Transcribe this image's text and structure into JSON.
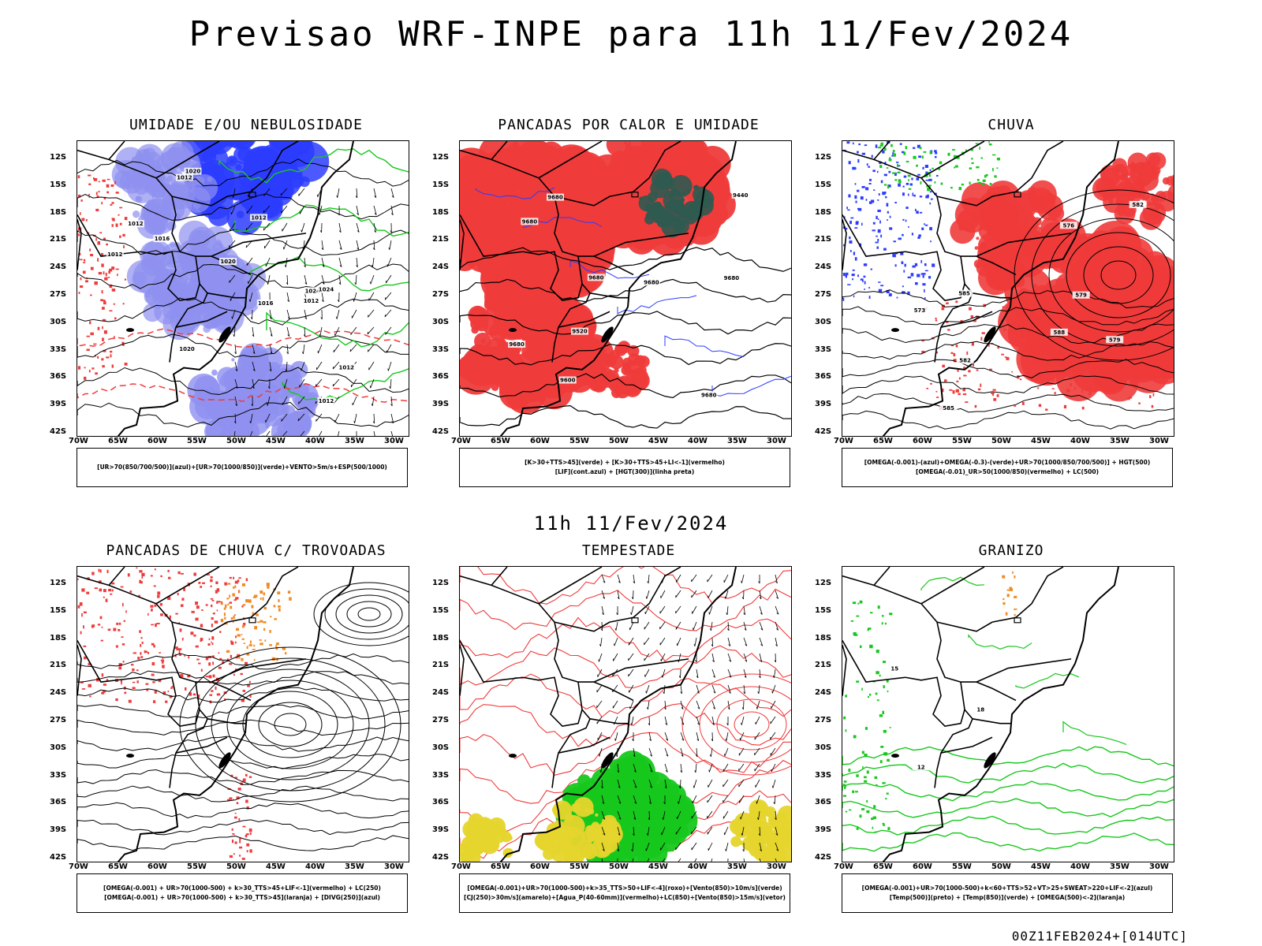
{
  "title": "Previsao WRF-INPE  para 11h 11/Fev/2024",
  "middle_title": "11h 11/Fev/2024",
  "footer": "00Z11FEB2024+[014UTC]",
  "lat_labels": [
    "12S",
    "15S",
    "18S",
    "21S",
    "24S",
    "27S",
    "30S",
    "33S",
    "36S",
    "39S",
    "42S"
  ],
  "lon_labels": [
    "70W",
    "65W",
    "60W",
    "55W",
    "50W",
    "45W",
    "40W",
    "35W",
    "30W"
  ],
  "colors": {
    "blue": "#2b3cff",
    "light_blue": "#8f90f0",
    "green": "#17c81c",
    "red": "#ef3b3b",
    "dark_teal": "#2f5a50",
    "orange": "#f08a24",
    "yellow": "#e5d52c"
  },
  "panels": [
    {
      "title": "UMIDADE E/OU NEBULOSIDADE",
      "legend": [
        "[UR>70(850/700/500)](azul)+[UR>70(1000/850)](verde)+VENTO>5m/s+ESP(500/1000)"
      ],
      "contour_labels": [
        "1016",
        "1012",
        "1020",
        "1012",
        "1020",
        "1012",
        "1012",
        "1016",
        "1012",
        "1012",
        "1020",
        "1024",
        "1012",
        "1024"
      ]
    },
    {
      "title": "PANCADAS POR CALOR E UMIDADE",
      "legend": [
        "[K>30+TTS>45](verde) + [K>30+TTS>45+LI<-1](vermelho)",
        "[LIF](cont.azul) + [HGT(300)](linha preta)"
      ],
      "contour_labels": [
        "9680",
        "9680",
        "9680",
        "9680",
        "9680",
        "9680",
        "9680",
        "9600",
        "9520",
        "9440"
      ]
    },
    {
      "title": "CHUVA",
      "legend": [
        "[OMEGA(-0.001)-(azul)+OMEGA(-0.3)-(verde)+UR>70(1000/850/700/500)] + HGT(500)",
        "[OMEGA(-0.01)_UR>50(1000/850)(vermelho) + LC(500)"
      ],
      "contour_labels": [
        "585",
        "588",
        "585",
        "582",
        "579",
        "576",
        "573",
        "582",
        "579"
      ]
    },
    {
      "title": "PANCADAS DE CHUVA C/ TROVOADAS",
      "legend": [
        "[OMEGA(-0.001) + UR>70(1000-500) + k>30_TTS>45+LIF<-1](vermelho) + LC(250)",
        "[OMEGA(-0.001) + UR>70(1000-500) + k>30_TTS>45](laranja) + [DIVG(250)](azul)"
      ],
      "contour_labels": []
    },
    {
      "title": "TEMPESTADE",
      "legend": [
        "[OMEGA(-0.001)+UR>70(1000-500)+k>35_TTS>50+LIF<-4](roxo)+[Vento(850)>10m/s](verde)",
        "[CJ(250)>30m/s](amarelo)+[Agua_P(40-60mm)](vermelho)+LC(850)+[Vento(850)>15m/s](vetor)"
      ],
      "contour_labels": []
    },
    {
      "title": "GRANIZO",
      "legend": [
        "[OMEGA(-0.001)+UR>70(1000-500)+k<60+TTS>52+VT>25+SWEAT>220+LIF<-2](azul)",
        "[Temp(500)](preto) + [Temp(850)](verde) + [OMEGA(500)<-2](laranja)"
      ],
      "contour_labels": [
        "18",
        "15",
        "12"
      ]
    }
  ]
}
